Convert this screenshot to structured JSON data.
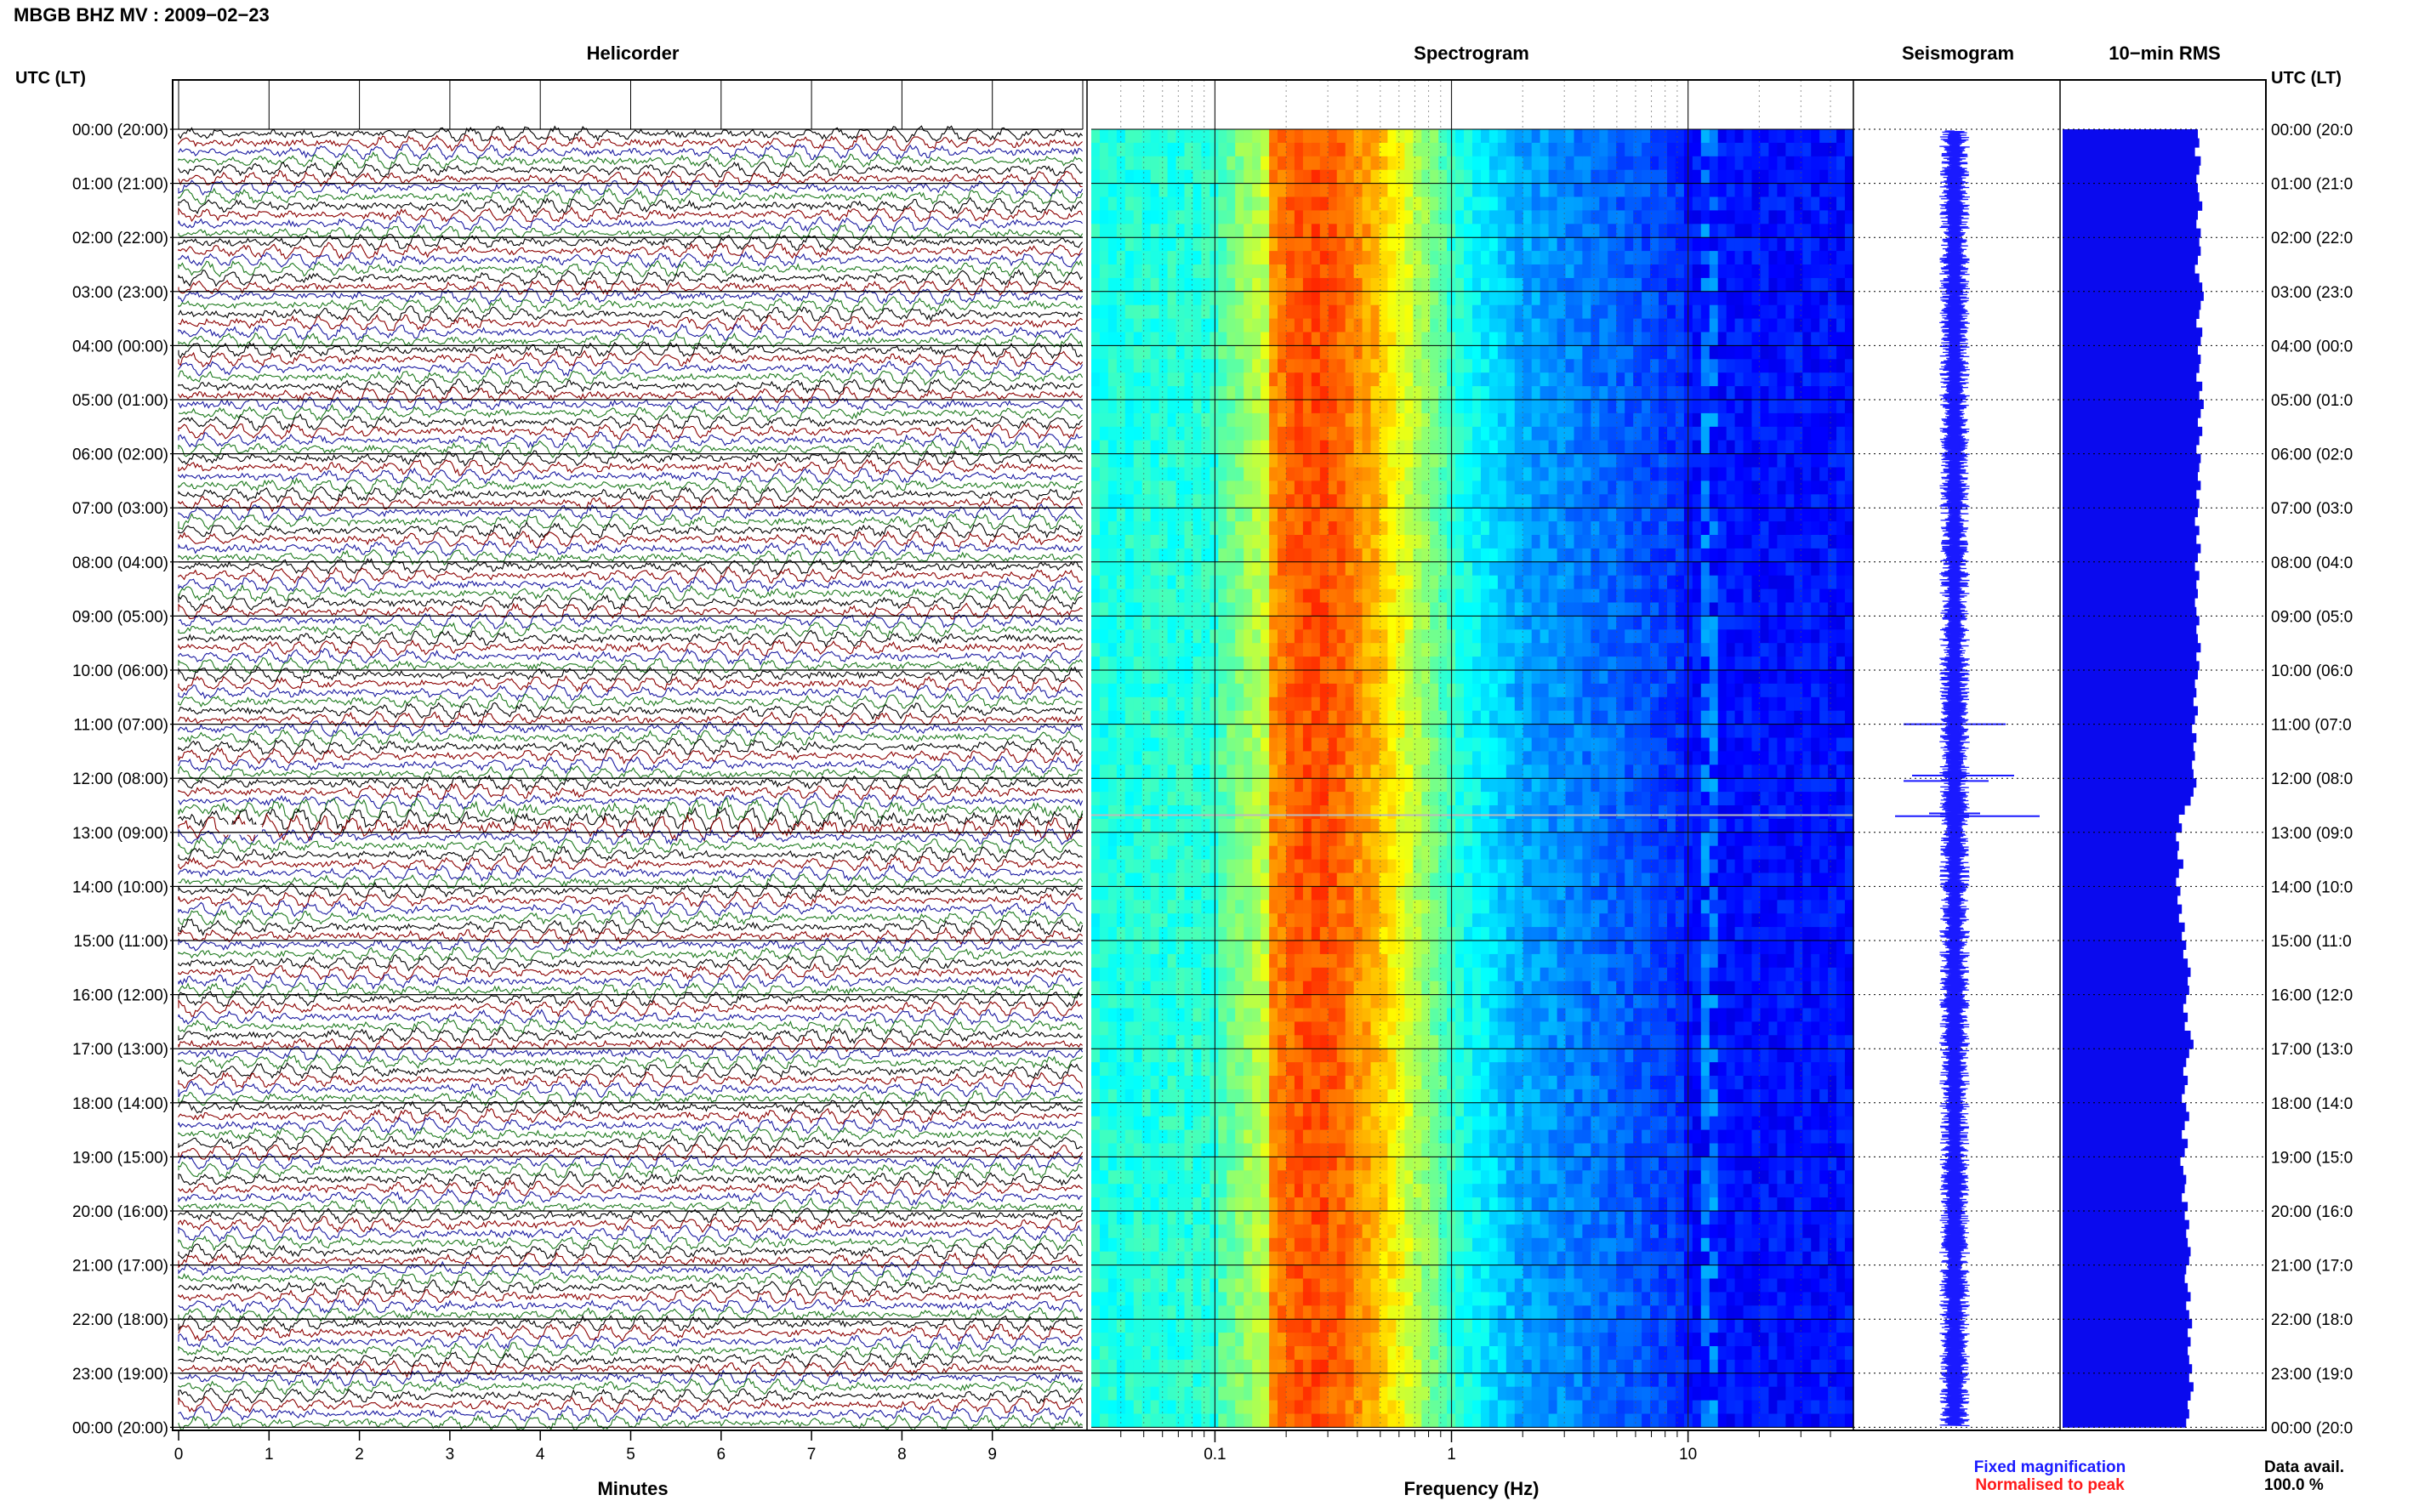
{
  "header": {
    "title": "MBGB BHZ MV : 2009−02−23",
    "utc_left": "UTC (LT)",
    "utc_right": "UTC (LT)"
  },
  "panels": {
    "helicorder": "Helicorder",
    "spectrogram": "Spectrogram",
    "seismogram": "Seismogram",
    "rms": "10−min RMS"
  },
  "row_labels_left": [
    "00:00 (20:00)",
    "01:00 (21:00)",
    "02:00 (22:00)",
    "03:00 (23:00)",
    "04:00 (00:00)",
    "05:00 (01:00)",
    "06:00 (02:00)",
    "07:00 (03:00)",
    "08:00 (04:00)",
    "09:00 (05:00)",
    "10:00 (06:00)",
    "11:00 (07:00)",
    "12:00 (08:00)",
    "13:00 (09:00)",
    "14:00 (10:00)",
    "15:00 (11:00)",
    "16:00 (12:00)",
    "17:00 (13:00)",
    "18:00 (14:00)",
    "19:00 (15:00)",
    "20:00 (16:00)",
    "21:00 (17:00)",
    "22:00 (18:00)",
    "23:00 (19:00)",
    "00:00 (20:00)"
  ],
  "row_labels_right": [
    "00:00 (20:0",
    "01:00 (21:0",
    "02:00 (22:0",
    "03:00 (23:0",
    "04:00 (00:0",
    "05:00 (01:0",
    "06:00 (02:0",
    "07:00 (03:0",
    "08:00 (04:0",
    "09:00 (05:0",
    "10:00 (06:0",
    "11:00 (07:0",
    "12:00 (08:0",
    "13:00 (09:0",
    "14:00 (10:0",
    "15:00 (11:0",
    "16:00 (12:0",
    "17:00 (13:0",
    "18:00 (14:0",
    "19:00 (15:0",
    "20:00 (16:0",
    "21:00 (17:0",
    "22:00 (18:0",
    "23:00 (19:0",
    "00:00 (20:0"
  ],
  "axes": {
    "minutes_ticks": [
      "0",
      "1",
      "2",
      "3",
      "4",
      "5",
      "6",
      "7",
      "8",
      "9"
    ],
    "minutes_label": "Minutes",
    "freq_ticks": [
      "0.1",
      "1",
      "10"
    ],
    "freq_label": "Frequency (Hz)"
  },
  "legend": {
    "fixed": "Fixed magnification",
    "normalised": "Normalised to peak",
    "avail_label": "Data avail.",
    "avail_value": "100.0 %"
  },
  "colors": {
    "trace_black": "#000000",
    "trace_red": "#8b0000",
    "trace_blue": "#1a1aa0",
    "trace_green": "#1f7a1f",
    "fixed_mag": "#1a1aff",
    "normalised": "#ff1a1a",
    "rms_fill": "#0a0aee"
  },
  "chart_data": [
    {
      "type": "line",
      "name": "helicorder",
      "title": "Helicorder",
      "xlabel": "Minutes",
      "x_ticks": [
        0,
        1,
        2,
        3,
        4,
        5,
        6,
        7,
        8,
        9
      ],
      "xlim": [
        0,
        10
      ],
      "y_labels": [
        "00:00 (20:00)",
        "01:00 (21:00)",
        "02:00 (22:00)",
        "03:00 (23:00)",
        "04:00 (00:00)",
        "05:00 (01:00)",
        "06:00 (02:00)",
        "07:00 (03:00)",
        "08:00 (04:00)",
        "09:00 (05:00)",
        "10:00 (06:00)",
        "11:00 (07:00)",
        "12:00 (08:00)",
        "13:00 (09:00)",
        "14:00 (10:00)",
        "15:00 (11:00)",
        "16:00 (12:00)",
        "17:00 (13:00)",
        "18:00 (14:00)",
        "19:00 (15:00)",
        "20:00 (16:00)",
        "21:00 (17:00)",
        "22:00 (18:00)",
        "23:00 (19:00)",
        "00:00 (20:00)"
      ],
      "trace_color_cycle": [
        "black",
        "red",
        "blue",
        "green"
      ],
      "traces_per_hour": 6,
      "events_utc": [
        "12:40"
      ]
    },
    {
      "type": "heatmap",
      "name": "spectrogram",
      "title": "Spectrogram",
      "xlabel": "Frequency (Hz)",
      "x_scale": "log",
      "xlim": [
        0.03,
        50
      ],
      "x_ticks": [
        0.1,
        1,
        10
      ],
      "colormap": "jet",
      "peak_band_hz": [
        0.18,
        0.4
      ]
    },
    {
      "type": "line",
      "name": "seismogram",
      "title": "Seismogram",
      "color": "fixed magnification blue",
      "events_utc": [
        "11:00",
        "12:00",
        "12:40"
      ]
    },
    {
      "type": "bar",
      "name": "rms",
      "title": "10−min RMS",
      "interval_minutes": 10,
      "count": 144,
      "relative_values": [
        0.93,
        0.94,
        0.91,
        0.95,
        0.94,
        0.92,
        0.93,
        0.94,
        0.96,
        0.93,
        0.92,
        0.95,
        0.94,
        0.95,
        0.93,
        0.91,
        0.94,
        0.96,
        0.97,
        0.95,
        0.94,
        0.92,
        0.96,
        0.95,
        0.93,
        0.95,
        0.94,
        0.92,
        0.96,
        0.94,
        0.97,
        0.95,
        0.93,
        0.96,
        0.94,
        0.92,
        0.95,
        0.94,
        0.93,
        0.95,
        0.92,
        0.94,
        0.93,
        0.91,
        0.94,
        0.92,
        0.95,
        0.93,
        0.91,
        0.94,
        0.92,
        0.93,
        0.91,
        0.92,
        0.94,
        0.92,
        0.93,
        0.95,
        0.92,
        0.94,
        0.93,
        0.91,
        0.92,
        0.9,
        0.93,
        0.91,
        0.89,
        0.92,
        0.9,
        0.91,
        0.89,
        0.9,
        0.92,
        0.9,
        0.88,
        0.84,
        0.8,
        0.82,
        0.78,
        0.8,
        0.79,
        0.83,
        0.8,
        0.78,
        0.81,
        0.79,
        0.82,
        0.8,
        0.84,
        0.82,
        0.85,
        0.83,
        0.86,
        0.88,
        0.86,
        0.87,
        0.85,
        0.83,
        0.86,
        0.84,
        0.88,
        0.9,
        0.87,
        0.85,
        0.83,
        0.86,
        0.84,
        0.82,
        0.85,
        0.87,
        0.84,
        0.82,
        0.86,
        0.84,
        0.81,
        0.83,
        0.85,
        0.84,
        0.82,
        0.86,
        0.84,
        0.87,
        0.85,
        0.86,
        0.88,
        0.87,
        0.85,
        0.84,
        0.86,
        0.88,
        0.85,
        0.87,
        0.89,
        0.86,
        0.88,
        0.86,
        0.87,
        0.89,
        0.87,
        0.9,
        0.88,
        0.86,
        0.87,
        0.85
      ]
    }
  ]
}
